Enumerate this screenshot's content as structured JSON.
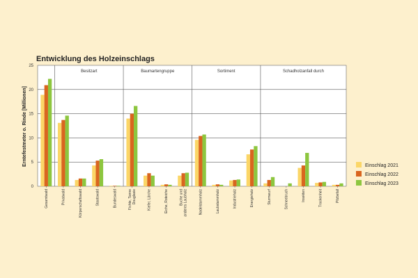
{
  "chart_data": {
    "type": "bar",
    "title": "Entwicklung des Holzeinschlags",
    "ylabel": "Erntefestmeter o. Rinde [Millionen]",
    "xlabel": "",
    "ylim": [
      0,
      25
    ],
    "yticks": [
      0,
      5,
      10,
      15,
      20,
      25
    ],
    "grid": true,
    "legend_position": "right",
    "groups": [
      {
        "label": "",
        "categories": [
          "Gesamtwald"
        ]
      },
      {
        "label": "Besitzart",
        "categories": [
          "Privatwald",
          "Körperschaftswald",
          "Staatswald",
          "Bundeswald"
        ]
      },
      {
        "label": "Baumartengruppe",
        "categories": [
          "Fichte, Tanne Douglasie",
          "Kiefer, Lärche",
          "Eiche, Roteiche",
          "Buche und anderes Laubholz"
        ]
      },
      {
        "label": "Sortiment",
        "categories": [
          "Nadelstammholz",
          "Laubstammholz",
          "Industrieholz",
          "Energieholz"
        ]
      },
      {
        "label": "Schadholzanfall durch",
        "categories": [
          "Sturmwurf",
          "Schneebruch",
          "Insekten",
          "Trockenheit",
          "Pilzbefall"
        ]
      }
    ],
    "categories": [
      "Gesamtwald",
      "Privatwald",
      "Körperschaftswald",
      "Staatswald",
      "Bundeswald",
      "Fichte, Tanne Douglasie",
      "Kiefer, Lärche",
      "Eiche, Roteiche",
      "Buche und anderes Laubholz",
      "Nadelstammholz",
      "Laubstammholz",
      "Industrieholz",
      "Energieholz",
      "Sturmwurf",
      "Schneebruch",
      "Insekten",
      "Trockenheit",
      "Pilzbefall"
    ],
    "series": [
      {
        "name": "Einschlag 2021",
        "color": "#fbd667",
        "values": [
          18.9,
          13.1,
          1.3,
          4.3,
          0.1,
          14.0,
          2.2,
          0.3,
          2.2,
          9.6,
          0.3,
          1.2,
          6.6,
          0.6,
          0.0,
          3.8,
          0.7,
          0.3
        ]
      },
      {
        "name": "Einschlag 2022",
        "color": "#d9651f",
        "values": [
          20.9,
          13.7,
          1.6,
          5.3,
          0.1,
          15.0,
          2.7,
          0.4,
          2.7,
          10.4,
          0.4,
          1.3,
          7.6,
          1.3,
          0.0,
          4.3,
          0.8,
          0.3
        ]
      },
      {
        "name": "Einschlag 2023",
        "color": "#8dc63f",
        "values": [
          22.2,
          14.6,
          1.6,
          5.6,
          0.1,
          16.6,
          2.2,
          0.3,
          2.8,
          10.7,
          0.3,
          1.4,
          8.3,
          1.9,
          0.6,
          6.9,
          0.9,
          0.6
        ]
      }
    ]
  }
}
